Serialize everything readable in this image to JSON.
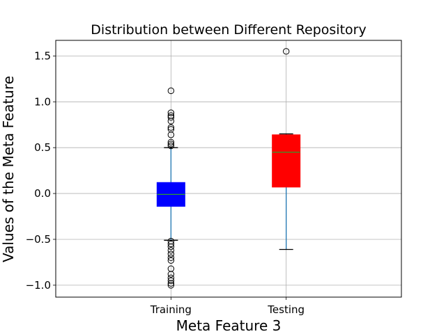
{
  "chart_data": {
    "type": "boxplot",
    "title": "Distribution between Different Repository",
    "xlabel": "Meta Feature 3",
    "ylabel": "Values of the Meta Feature",
    "categories": [
      "Training",
      "Testing"
    ],
    "ylim": [
      -1.13,
      1.67
    ],
    "yticks": [
      -1.0,
      -0.5,
      0.0,
      0.5,
      1.0,
      1.5
    ],
    "ytick_labels": [
      "−1.0",
      "−0.5",
      "0.0",
      "0.5",
      "1.0",
      "1.5"
    ],
    "grid": true,
    "boxes": [
      {
        "name": "Training",
        "color": "#0000ff",
        "whisker_low": -0.51,
        "q1": -0.14,
        "median": -0.01,
        "q3": 0.12,
        "whisker_high": 0.5,
        "outliers": [
          1.12,
          0.88,
          0.85,
          0.83,
          0.79,
          0.72,
          0.7,
          0.64,
          0.56,
          0.54,
          0.52,
          -0.52,
          -0.55,
          -0.58,
          -0.62,
          -0.66,
          -0.7,
          -0.73,
          -0.82,
          -0.88,
          -0.92,
          -0.95,
          -0.98,
          -1.0
        ]
      },
      {
        "name": "Testing",
        "color": "#ff0000",
        "whisker_low": -0.61,
        "q1": 0.07,
        "median": 0.45,
        "q3": 0.64,
        "whisker_high": 0.65,
        "outliers": [
          1.55
        ]
      }
    ]
  }
}
